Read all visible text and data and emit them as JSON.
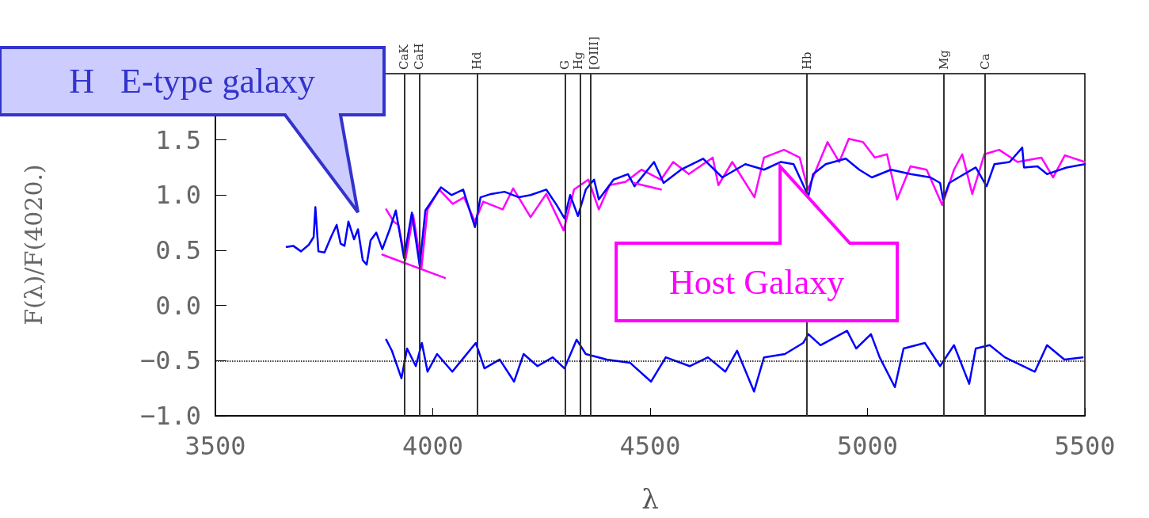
{
  "chart_data": {
    "type": "line",
    "xlabel": "λ",
    "ylabel": "F(λ)/F(4020.)",
    "xlim": [
      3500,
      5500
    ],
    "xticks": [
      3500,
      4000,
      4500,
      5000,
      5500
    ],
    "ylim": [
      -1,
      2.1
    ],
    "yticks": [
      {
        "value": -1,
        "label": "−1.0"
      },
      {
        "value": -0.5,
        "label": "−0.5"
      },
      {
        "value": 0,
        "label": "0.0"
      },
      {
        "value": 0.5,
        "label": "0.5"
      },
      {
        "value": 1,
        "label": "1.0"
      },
      {
        "value": 1.5,
        "label": "1.5"
      }
    ],
    "grid": false,
    "marker": "none",
    "line_style": "solid",
    "series": [
      {
        "color": "#ff00ff",
        "x": [
          3893,
          3910,
          3921,
          3937,
          3955,
          3974,
          3988,
          4015,
          4046,
          4072,
          4097,
          4116,
          4161,
          4185,
          4225,
          4261,
          4301,
          4325,
          4358,
          4382,
          4407,
          4444,
          4480,
          4525,
          4553,
          4589,
          4644,
          4657,
          4689,
          4740,
          4762,
          4808,
          4844,
          4863,
          4908,
          4935,
          4957,
          4990,
          5017,
          5045,
          5068,
          5099,
          5136,
          5172,
          5199,
          5218,
          5241,
          5269,
          5303,
          5345,
          5400,
          5427,
          5454,
          5500
        ],
        "values": [
          0.87,
          0.76,
          0.73,
          0.41,
          0.82,
          0.34,
          0.87,
          1.05,
          0.92,
          0.98,
          0.76,
          0.94,
          0.87,
          1.06,
          0.8,
          1.01,
          0.68,
          1.05,
          1.14,
          0.87,
          1.09,
          1.12,
          1.23,
          1.14,
          1.3,
          1.19,
          1.34,
          1.09,
          1.3,
          0.98,
          1.34,
          1.41,
          1.34,
          1.05,
          1.48,
          1.3,
          1.51,
          1.48,
          1.34,
          1.37,
          0.96,
          1.26,
          1.23,
          0.91,
          1.23,
          1.37,
          1.01,
          1.37,
          1.41,
          1.3,
          1.34,
          1.16,
          1.36,
          1.3
        ]
      },
      {
        "color": "#0000ff",
        "x": [
          3664,
          3679,
          3697,
          3715,
          3726,
          3730,
          3737,
          3751,
          3766,
          3779,
          3788,
          3797,
          3806,
          3819,
          3828,
          3839,
          3848,
          3857,
          3870,
          3884,
          3901,
          3915,
          3934,
          3952,
          3970,
          3983,
          4019,
          4043,
          4070,
          4097,
          4110,
          4134,
          4165,
          4198,
          4225,
          4261,
          4285,
          4303,
          4316,
          4334,
          4352,
          4371,
          4382,
          4416,
          4449,
          4464,
          4509,
          4531,
          4571,
          4622,
          4666,
          4719,
          4762,
          4801,
          4830,
          4864,
          4875,
          4904,
          4950,
          4981,
          5010,
          5054,
          5099,
          5145,
          5167,
          5174,
          5188,
          5218,
          5249,
          5274,
          5292,
          5327,
          5356,
          5360,
          5391,
          5413,
          5458,
          5500
        ],
        "values": [
          0.53,
          0.54,
          0.49,
          0.55,
          0.62,
          0.89,
          0.49,
          0.48,
          0.62,
          0.73,
          0.56,
          0.54,
          0.76,
          0.6,
          0.69,
          0.41,
          0.37,
          0.59,
          0.66,
          0.51,
          0.69,
          0.86,
          0.43,
          0.84,
          0.36,
          0.86,
          1.07,
          1.0,
          1.05,
          0.71,
          0.98,
          1.01,
          1.03,
          0.98,
          1.0,
          1.05,
          0.91,
          0.79,
          1.0,
          0.81,
          1.05,
          1.14,
          0.96,
          1.14,
          1.19,
          1.08,
          1.3,
          1.11,
          1.23,
          1.33,
          1.16,
          1.28,
          1.23,
          1.3,
          1.28,
          0.99,
          1.19,
          1.28,
          1.33,
          1.23,
          1.16,
          1.23,
          1.19,
          1.16,
          1.11,
          0.96,
          1.11,
          1.18,
          1.25,
          1.08,
          1.28,
          1.3,
          1.43,
          1.25,
          1.26,
          1.19,
          1.25,
          1.28
        ]
      },
      {
        "color": "#0000ff",
        "x": [
          3893,
          3906,
          3928,
          3941,
          3961,
          3975,
          3988,
          4010,
          4045,
          4072,
          4099,
          4119,
          4154,
          4187,
          4209,
          4241,
          4276,
          4303,
          4331,
          4352,
          4400,
          4454,
          4502,
          4536,
          4591,
          4633,
          4673,
          4700,
          4739,
          4762,
          4810,
          4852,
          4864,
          4892,
          4953,
          4974,
          5008,
          5028,
          5063,
          5083,
          5132,
          5167,
          5199,
          5234,
          5249,
          5281,
          5316,
          5385,
          5413,
          5453,
          5495
        ],
        "values": [
          -0.31,
          -0.41,
          -0.66,
          -0.39,
          -0.55,
          -0.34,
          -0.6,
          -0.44,
          -0.6,
          -0.47,
          -0.34,
          -0.57,
          -0.49,
          -0.69,
          -0.44,
          -0.55,
          -0.47,
          -0.57,
          -0.31,
          -0.44,
          -0.49,
          -0.52,
          -0.69,
          -0.47,
          -0.55,
          -0.47,
          -0.6,
          -0.41,
          -0.78,
          -0.47,
          -0.44,
          -0.34,
          -0.26,
          -0.36,
          -0.23,
          -0.39,
          -0.26,
          -0.47,
          -0.74,
          -0.39,
          -0.34,
          -0.55,
          -0.36,
          -0.71,
          -0.39,
          -0.36,
          -0.47,
          -0.6,
          -0.36,
          -0.49,
          -0.47
        ]
      },
      {
        "color": "#ff00ff",
        "x": [
          3884,
          4028,
          4200,
          4462,
          4525
        ],
        "values": [
          0.46,
          0.25,
          null,
          1.11,
          1.05
        ]
      }
    ],
    "ref_lines": [
      {
        "axis": "x",
        "value": 3934,
        "label": "CaK",
        "color": "#333333",
        "line_style": "solid"
      },
      {
        "axis": "x",
        "value": 3969,
        "label": "CaH",
        "color": "#333333",
        "line_style": "solid"
      },
      {
        "axis": "x",
        "value": 4102,
        "label": "Hd",
        "color": "#333333",
        "line_style": "solid"
      },
      {
        "axis": "x",
        "value": 4304,
        "label": "G",
        "color": "#333333",
        "line_style": "solid"
      },
      {
        "axis": "x",
        "value": 4340,
        "label": "Hg",
        "color": "#333333",
        "line_style": "solid"
      },
      {
        "axis": "x",
        "value": 4363,
        "label": "[OIII]",
        "color": "#333333",
        "line_style": "solid"
      },
      {
        "axis": "x",
        "value": 4861,
        "label": "Hb",
        "color": "#333333",
        "line_style": "solid"
      },
      {
        "axis": "x",
        "value": 5175,
        "label": "Mg",
        "color": "#333333",
        "line_style": "solid"
      },
      {
        "axis": "x",
        "value": 5270,
        "label": "Ca",
        "color": "#333333",
        "line_style": "solid"
      },
      {
        "axis": "y",
        "value": -0.5,
        "color": "#000000",
        "line_style": "dotted"
      }
    ],
    "annotations": [
      "H   E-type galaxy",
      {
        "text": "Host Galaxy",
        "x": 4799,
        "y": 1.26
      }
    ]
  }
}
